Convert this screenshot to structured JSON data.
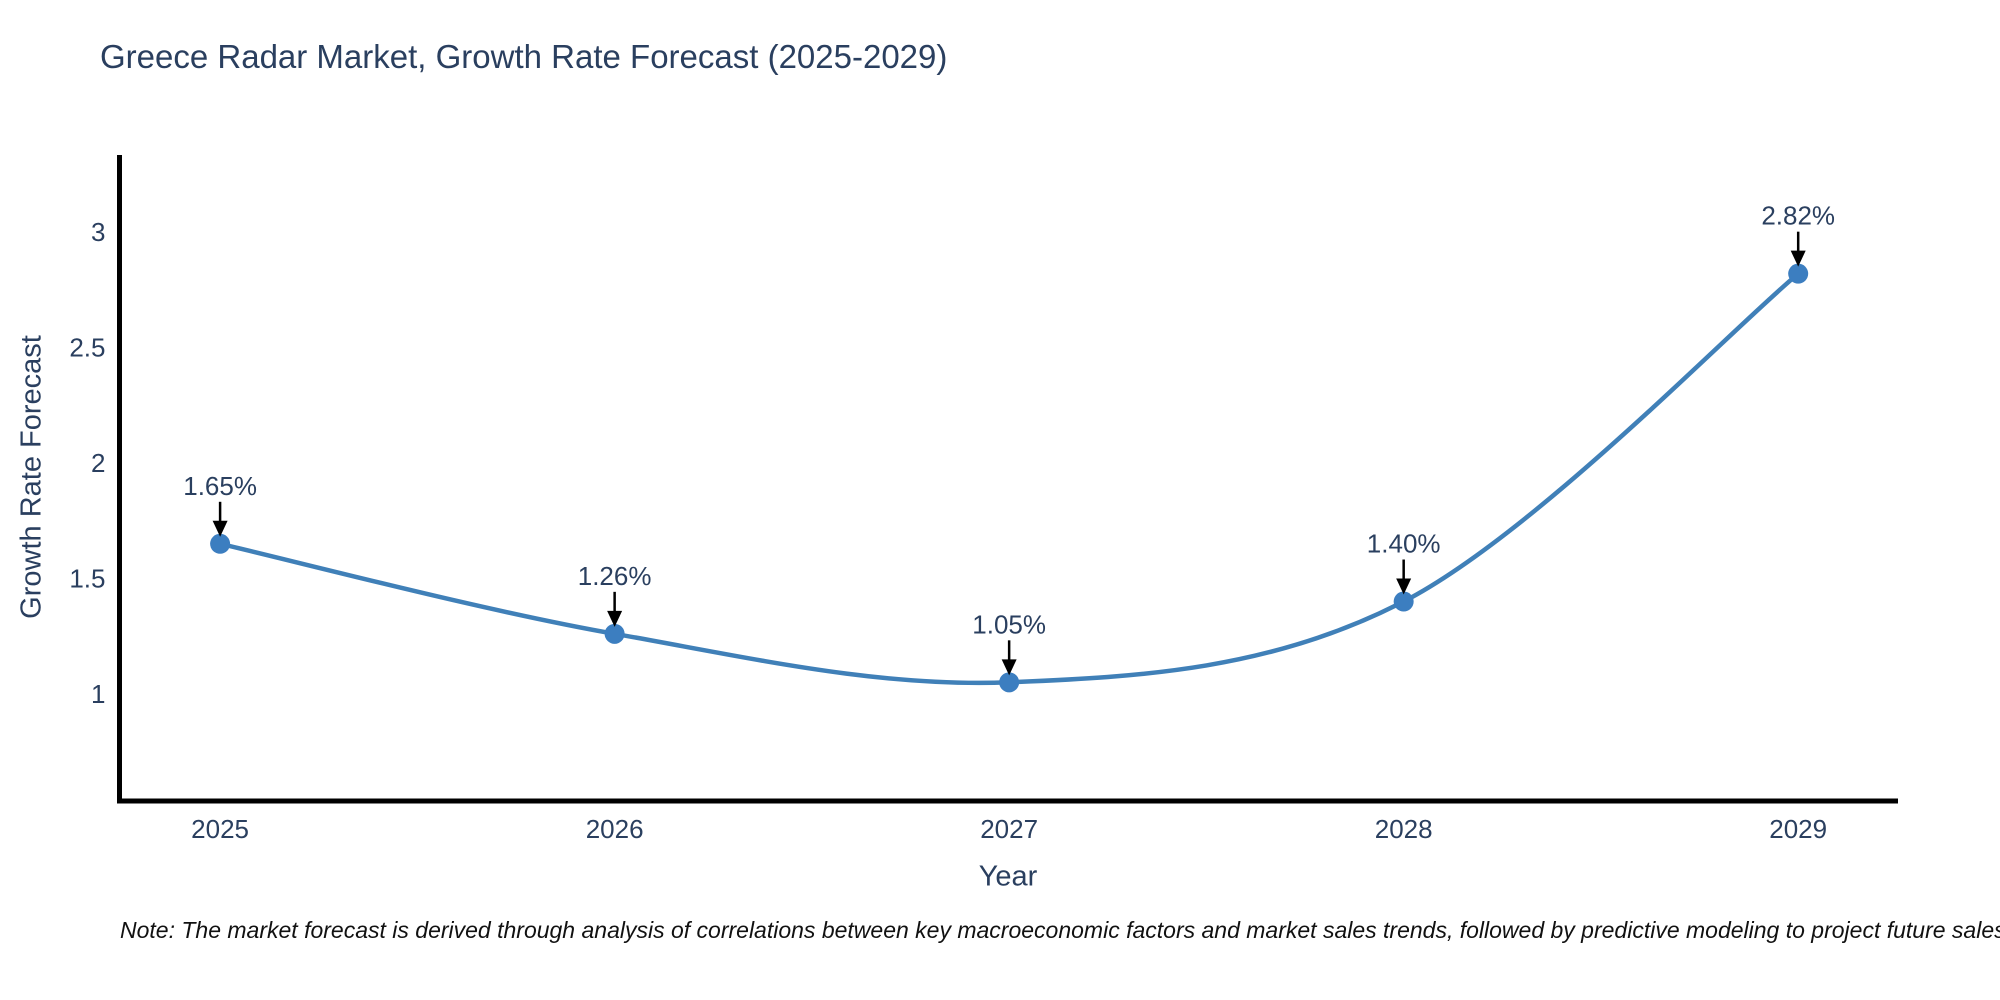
{
  "chart_data": {
    "type": "line",
    "title": "Greece Radar Market, Growth Rate Forecast (2025-2029)",
    "xlabel": "Year",
    "ylabel": "Growth Rate Forecast",
    "x": [
      2025,
      2026,
      2027,
      2028,
      2029
    ],
    "x_tick_labels": [
      "2025",
      "2026",
      "2027",
      "2028",
      "2029"
    ],
    "values": [
      1.65,
      1.26,
      1.05,
      1.4,
      2.82
    ],
    "point_labels": [
      "1.65%",
      "1.26%",
      "1.05%",
      "1.40%",
      "2.82%"
    ],
    "y_ticks": [
      1,
      1.5,
      2,
      2.5,
      3
    ],
    "y_tick_labels": [
      "1",
      "1.5",
      "2",
      "2.5",
      "3"
    ],
    "xlim": [
      2024.745,
      2029.253
    ],
    "ylim": [
      0.536,
      3.334
    ],
    "grid": false,
    "legend": "none",
    "line_shape": "spline",
    "colors": {
      "line": "#4080b8",
      "marker": "#3c7ec0",
      "axis": "#000000",
      "text": "#2a3f5f",
      "annotation_arrow": "#000000",
      "background": "#ffffff"
    }
  },
  "note": "Note: The market forecast is derived through analysis of correlations between key macroeconomic factors and market sales trends, followed by predictive modeling to project future sales"
}
